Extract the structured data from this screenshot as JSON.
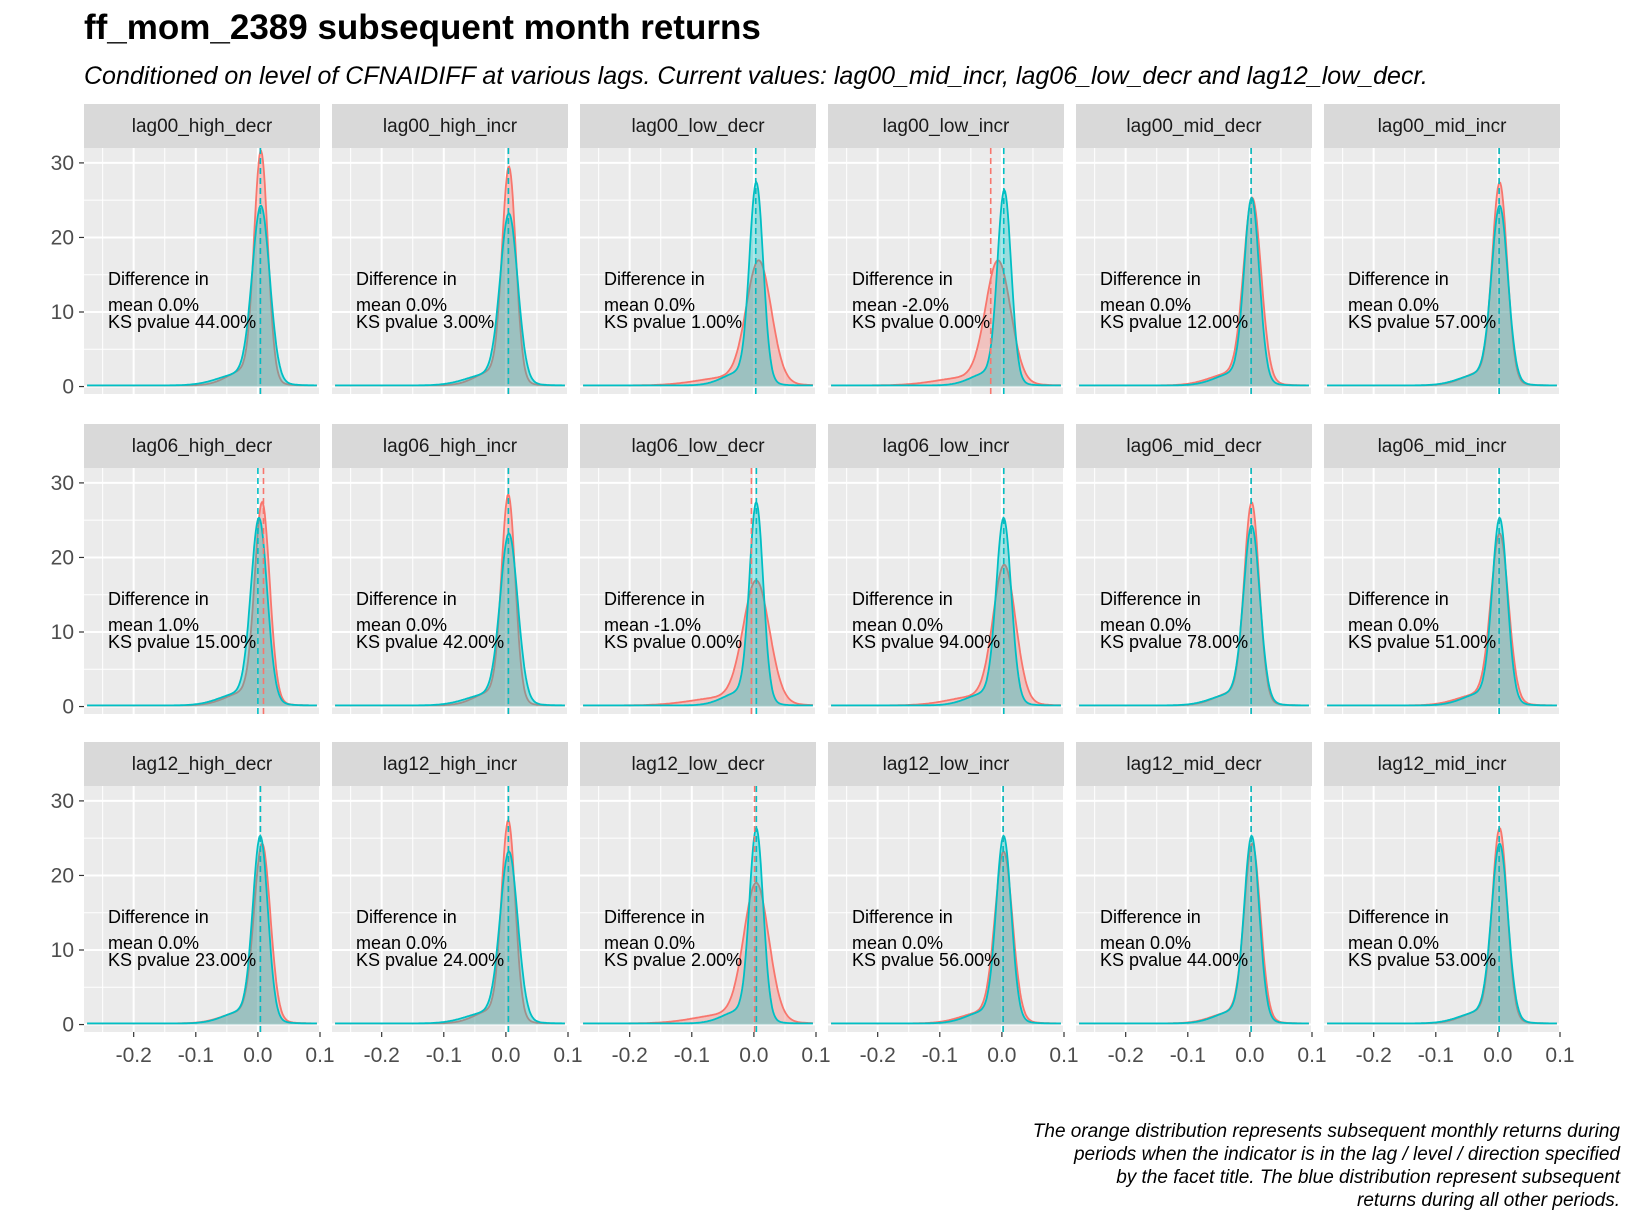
{
  "title": "ff_mom_2389 subsequent month returns",
  "subtitle": "Conditioned on level of CFNAIDIFF at various lags.  Current values: lag00_mid_incr, lag06_low_decr and lag12_low_decr.",
  "caption_lines": [
    "The orange distribution represents subsequent monthly returns during",
    "periods when the indicator is in the lag / level / direction specified",
    "by the facet title.  The blue distribution represent subsequent",
    "returns during all other periods."
  ],
  "colors": {
    "conditioned": "#F8766D",
    "other": "#00BFC4",
    "panel_bg": "#EBEBEB",
    "strip_bg": "#D9D9D9",
    "grid": "#FFFFFF"
  },
  "chart_data": {
    "type": "area",
    "facet_rows": 3,
    "facet_cols": 6,
    "xlim": [
      -0.28,
      0.1
    ],
    "ylim": [
      -1,
      32
    ],
    "x_ticks": [
      -0.2,
      -0.1,
      0.0,
      0.1
    ],
    "x_tick_labels": [
      "-0.2",
      "-0.1",
      "0.0",
      "0.1"
    ],
    "y_ticks": [
      0,
      10,
      20,
      30
    ],
    "y_tick_labels": [
      "0",
      "10",
      "20",
      "30"
    ],
    "annotation_line1": "Difference in",
    "panels": [
      {
        "label": "lag00_high_decr",
        "diff": "mean 0.0%",
        "ks": "KS pvalue 44.00%",
        "cond_mean": 0.004,
        "other_mean": 0.004,
        "cond_peak": 30,
        "other_peak": 23,
        "cond_sd": 0.011,
        "other_sd": 0.014,
        "cond_center": 0.005,
        "other_center": 0.005
      },
      {
        "label": "lag00_high_incr",
        "diff": "mean 0.0%",
        "ks": "KS pvalue 3.00%",
        "cond_mean": 0.004,
        "other_mean": 0.004,
        "cond_peak": 28,
        "other_peak": 22,
        "cond_sd": 0.011,
        "other_sd": 0.014,
        "cond_center": 0.005,
        "other_center": 0.005
      },
      {
        "label": "lag00_low_decr",
        "diff": "mean 0.0%",
        "ks": "KS pvalue 1.00%",
        "cond_mean": 0.003,
        "other_mean": 0.003,
        "cond_peak": 16,
        "other_peak": 26,
        "cond_sd": 0.02,
        "other_sd": 0.011,
        "cond_center": 0.008,
        "other_center": 0.004
      },
      {
        "label": "lag00_low_incr",
        "diff": "mean -2.0%",
        "ks": "KS pvalue 0.00%",
        "cond_mean": -0.018,
        "other_mean": 0.003,
        "cond_peak": 16,
        "other_peak": 25,
        "cond_sd": 0.02,
        "other_sd": 0.011,
        "cond_center": -0.006,
        "other_center": 0.004
      },
      {
        "label": "lag00_mid_decr",
        "diff": "mean 0.0%",
        "ks": "KS pvalue 12.00%",
        "cond_mean": 0.002,
        "other_mean": 0.002,
        "cond_peak": 24,
        "other_peak": 24,
        "cond_sd": 0.014,
        "other_sd": 0.012,
        "cond_center": 0.004,
        "other_center": 0.003
      },
      {
        "label": "lag00_mid_incr",
        "diff": "mean 0.0%",
        "ks": "KS pvalue 57.00%",
        "cond_mean": 0.002,
        "other_mean": 0.002,
        "cond_peak": 26,
        "other_peak": 23,
        "cond_sd": 0.012,
        "other_sd": 0.013,
        "cond_center": 0.003,
        "other_center": 0.003
      },
      {
        "label": "lag06_high_decr",
        "diff": "mean 1.0%",
        "ks": "KS pvalue 15.00%",
        "cond_mean": 0.009,
        "other_mean": 0.0,
        "cond_peak": 26,
        "other_peak": 24,
        "cond_sd": 0.012,
        "other_sd": 0.013,
        "cond_center": 0.007,
        "other_center": 0.002
      },
      {
        "label": "lag06_high_incr",
        "diff": "mean 0.0%",
        "ks": "KS pvalue 42.00%",
        "cond_mean": 0.004,
        "other_mean": 0.004,
        "cond_peak": 27,
        "other_peak": 22,
        "cond_sd": 0.011,
        "other_sd": 0.014,
        "cond_center": 0.004,
        "other_center": 0.005
      },
      {
        "label": "lag06_low_decr",
        "diff": "mean -1.0%",
        "ks": "KS pvalue 0.00%",
        "cond_mean": -0.004,
        "other_mean": 0.004,
        "cond_peak": 16,
        "other_peak": 26,
        "cond_sd": 0.021,
        "other_sd": 0.011,
        "cond_center": 0.004,
        "other_center": 0.004
      },
      {
        "label": "lag06_low_incr",
        "diff": "mean 0.0%",
        "ks": "KS pvalue 94.00%",
        "cond_mean": 0.003,
        "other_mean": 0.003,
        "cond_peak": 18,
        "other_peak": 24,
        "cond_sd": 0.018,
        "other_sd": 0.012,
        "cond_center": 0.004,
        "other_center": 0.003
      },
      {
        "label": "lag06_mid_decr",
        "diff": "mean 0.0%",
        "ks": "KS pvalue 78.00%",
        "cond_mean": 0.002,
        "other_mean": 0.002,
        "cond_peak": 26,
        "other_peak": 23,
        "cond_sd": 0.012,
        "other_sd": 0.013,
        "cond_center": 0.003,
        "other_center": 0.003
      },
      {
        "label": "lag06_mid_incr",
        "diff": "mean 0.0%",
        "ks": "KS pvalue 51.00%",
        "cond_mean": 0.002,
        "other_mean": 0.002,
        "cond_peak": 22,
        "other_peak": 24,
        "cond_sd": 0.014,
        "other_sd": 0.012,
        "cond_center": 0.003,
        "other_center": 0.003
      },
      {
        "label": "lag12_high_decr",
        "diff": "mean 0.0%",
        "ks": "KS pvalue 23.00%",
        "cond_mean": 0.004,
        "other_mean": 0.004,
        "cond_peak": 23,
        "other_peak": 24,
        "cond_sd": 0.013,
        "other_sd": 0.012,
        "cond_center": 0.007,
        "other_center": 0.004
      },
      {
        "label": "lag12_high_incr",
        "diff": "mean 0.0%",
        "ks": "KS pvalue 24.00%",
        "cond_mean": 0.004,
        "other_mean": 0.004,
        "cond_peak": 26,
        "other_peak": 22,
        "cond_sd": 0.011,
        "other_sd": 0.014,
        "cond_center": 0.004,
        "other_center": 0.005
      },
      {
        "label": "lag12_low_decr",
        "diff": "mean 0.0%",
        "ks": "KS pvalue 2.00%",
        "cond_mean": 0.001,
        "other_mean": 0.004,
        "cond_peak": 18,
        "other_peak": 25,
        "cond_sd": 0.02,
        "other_sd": 0.011,
        "cond_center": 0.004,
        "other_center": 0.004
      },
      {
        "label": "lag12_low_incr",
        "diff": "mean 0.0%",
        "ks": "KS pvalue 56.00%",
        "cond_mean": 0.002,
        "other_mean": 0.002,
        "cond_peak": 22,
        "other_peak": 24,
        "cond_sd": 0.014,
        "other_sd": 0.012,
        "cond_center": 0.003,
        "other_center": 0.003
      },
      {
        "label": "lag12_mid_decr",
        "diff": "mean 0.0%",
        "ks": "KS pvalue 44.00%",
        "cond_mean": 0.002,
        "other_mean": 0.002,
        "cond_peak": 23,
        "other_peak": 24,
        "cond_sd": 0.013,
        "other_sd": 0.012,
        "cond_center": 0.004,
        "other_center": 0.003
      },
      {
        "label": "lag12_mid_incr",
        "diff": "mean 0.0%",
        "ks": "KS pvalue 53.00%",
        "cond_mean": 0.002,
        "other_mean": 0.002,
        "cond_peak": 25,
        "other_peak": 23,
        "cond_sd": 0.012,
        "other_sd": 0.013,
        "cond_center": 0.003,
        "other_center": 0.003
      }
    ]
  }
}
